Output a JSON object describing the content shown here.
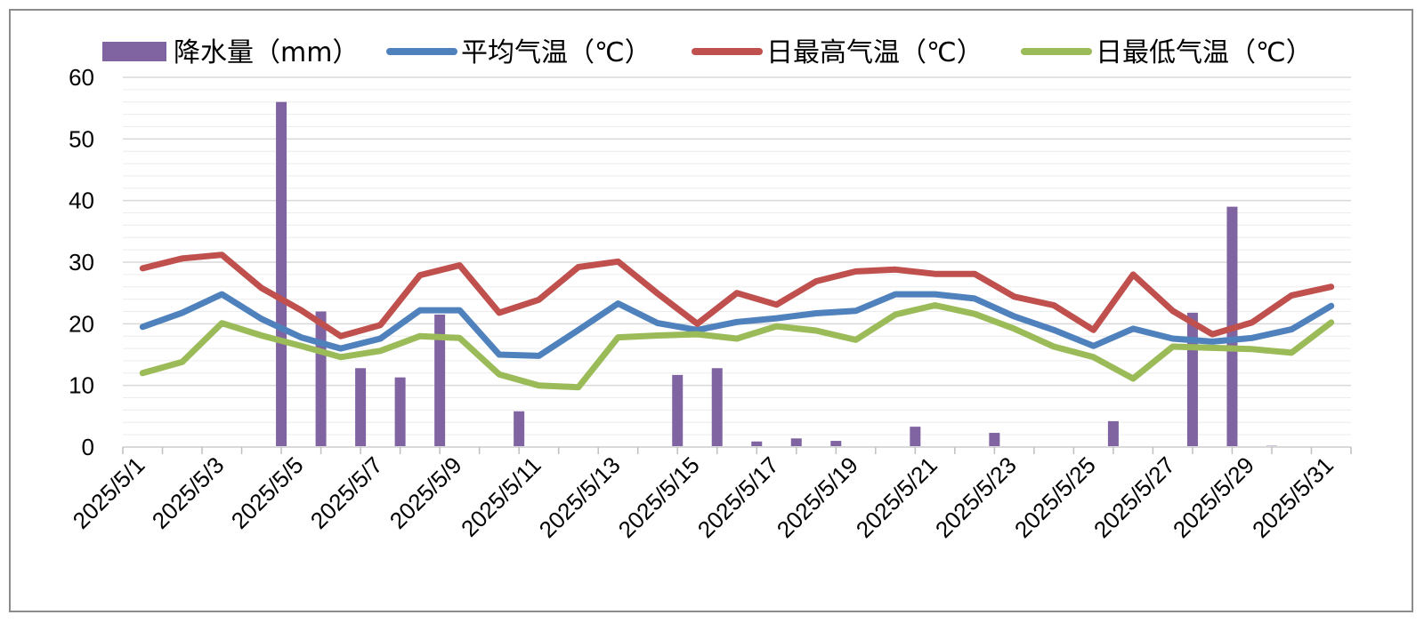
{
  "chart_data": {
    "type": "bar+line",
    "categories": [
      "2025/5/1",
      "2025/5/2",
      "2025/5/3",
      "2025/5/4",
      "2025/5/5",
      "2025/5/6",
      "2025/5/7",
      "2025/5/8",
      "2025/5/9",
      "2025/5/10",
      "2025/5/11",
      "2025/5/12",
      "2025/5/13",
      "2025/5/14",
      "2025/5/15",
      "2025/5/16",
      "2025/5/17",
      "2025/5/18",
      "2025/5/19",
      "2025/5/20",
      "2025/5/21",
      "2025/5/22",
      "2025/5/23",
      "2025/5/24",
      "2025/5/25",
      "2025/5/26",
      "2025/5/27",
      "2025/5/28",
      "2025/5/29",
      "2025/5/30",
      "2025/5/31"
    ],
    "x_tick_labels": [
      "2025/5/1",
      "2025/5/3",
      "2025/5/5",
      "2025/5/7",
      "2025/5/9",
      "2025/5/11",
      "2025/5/13",
      "2025/5/15",
      "2025/5/17",
      "2025/5/19",
      "2025/5/21",
      "2025/5/23",
      "2025/5/25",
      "2025/5/27",
      "2025/5/29",
      "2025/5/31"
    ],
    "ylim": [
      0,
      60
    ],
    "y_ticks": [
      0,
      10,
      20,
      30,
      40,
      50,
      60
    ],
    "grid": "horizontal",
    "legend_position": "top",
    "series": [
      {
        "name": "降水量（mm）",
        "kind": "bar",
        "color": "#8064a2",
        "values": [
          0,
          0,
          0,
          56,
          22,
          12.8,
          11.3,
          21.5,
          0,
          5.8,
          0,
          0,
          0,
          11.7,
          12.8,
          0.9,
          1.4,
          1.0,
          0,
          3.3,
          0,
          2.3,
          0,
          0,
          4.2,
          0,
          21.8,
          39,
          0.2,
          0.1,
          0
        ]
      },
      {
        "name": "平均气温（℃）",
        "kind": "line",
        "color": "#4f81bd",
        "values": [
          19.5,
          21.8,
          24.8,
          20.8,
          17.8,
          16,
          17.6,
          22.2,
          22.2,
          15,
          14.8,
          19,
          23.3,
          20.1,
          19,
          20.3,
          20.9,
          21.7,
          22.1,
          24.8,
          24.8,
          24.1,
          21.2,
          19,
          16.4,
          19.2,
          17.6,
          17.1,
          17.7,
          19.1,
          22.9
        ]
      },
      {
        "name": "日最高气温（℃）",
        "kind": "line",
        "color": "#c0504d",
        "values": [
          29,
          30.6,
          31.2,
          25.8,
          22.2,
          18,
          19.8,
          27.9,
          29.5,
          21.8,
          23.9,
          29.2,
          30.1,
          24.9,
          20,
          25,
          23.1,
          26.9,
          28.5,
          28.8,
          28.1,
          28.1,
          24.4,
          23,
          19,
          28,
          22.1,
          18.3,
          20.2,
          24.6,
          26
        ]
      },
      {
        "name": "日最低气温（℃）",
        "kind": "line",
        "color": "#9bbb59",
        "values": [
          12,
          13.8,
          20.1,
          18.1,
          16.4,
          14.6,
          15.6,
          18,
          17.7,
          11.8,
          10,
          9.7,
          17.8,
          18.1,
          18.3,
          17.6,
          19.6,
          18.9,
          17.4,
          21.5,
          23,
          21.6,
          19.2,
          16.3,
          14.6,
          11.1,
          16.3,
          16.1,
          15.9,
          15.3,
          20.2
        ]
      }
    ]
  }
}
